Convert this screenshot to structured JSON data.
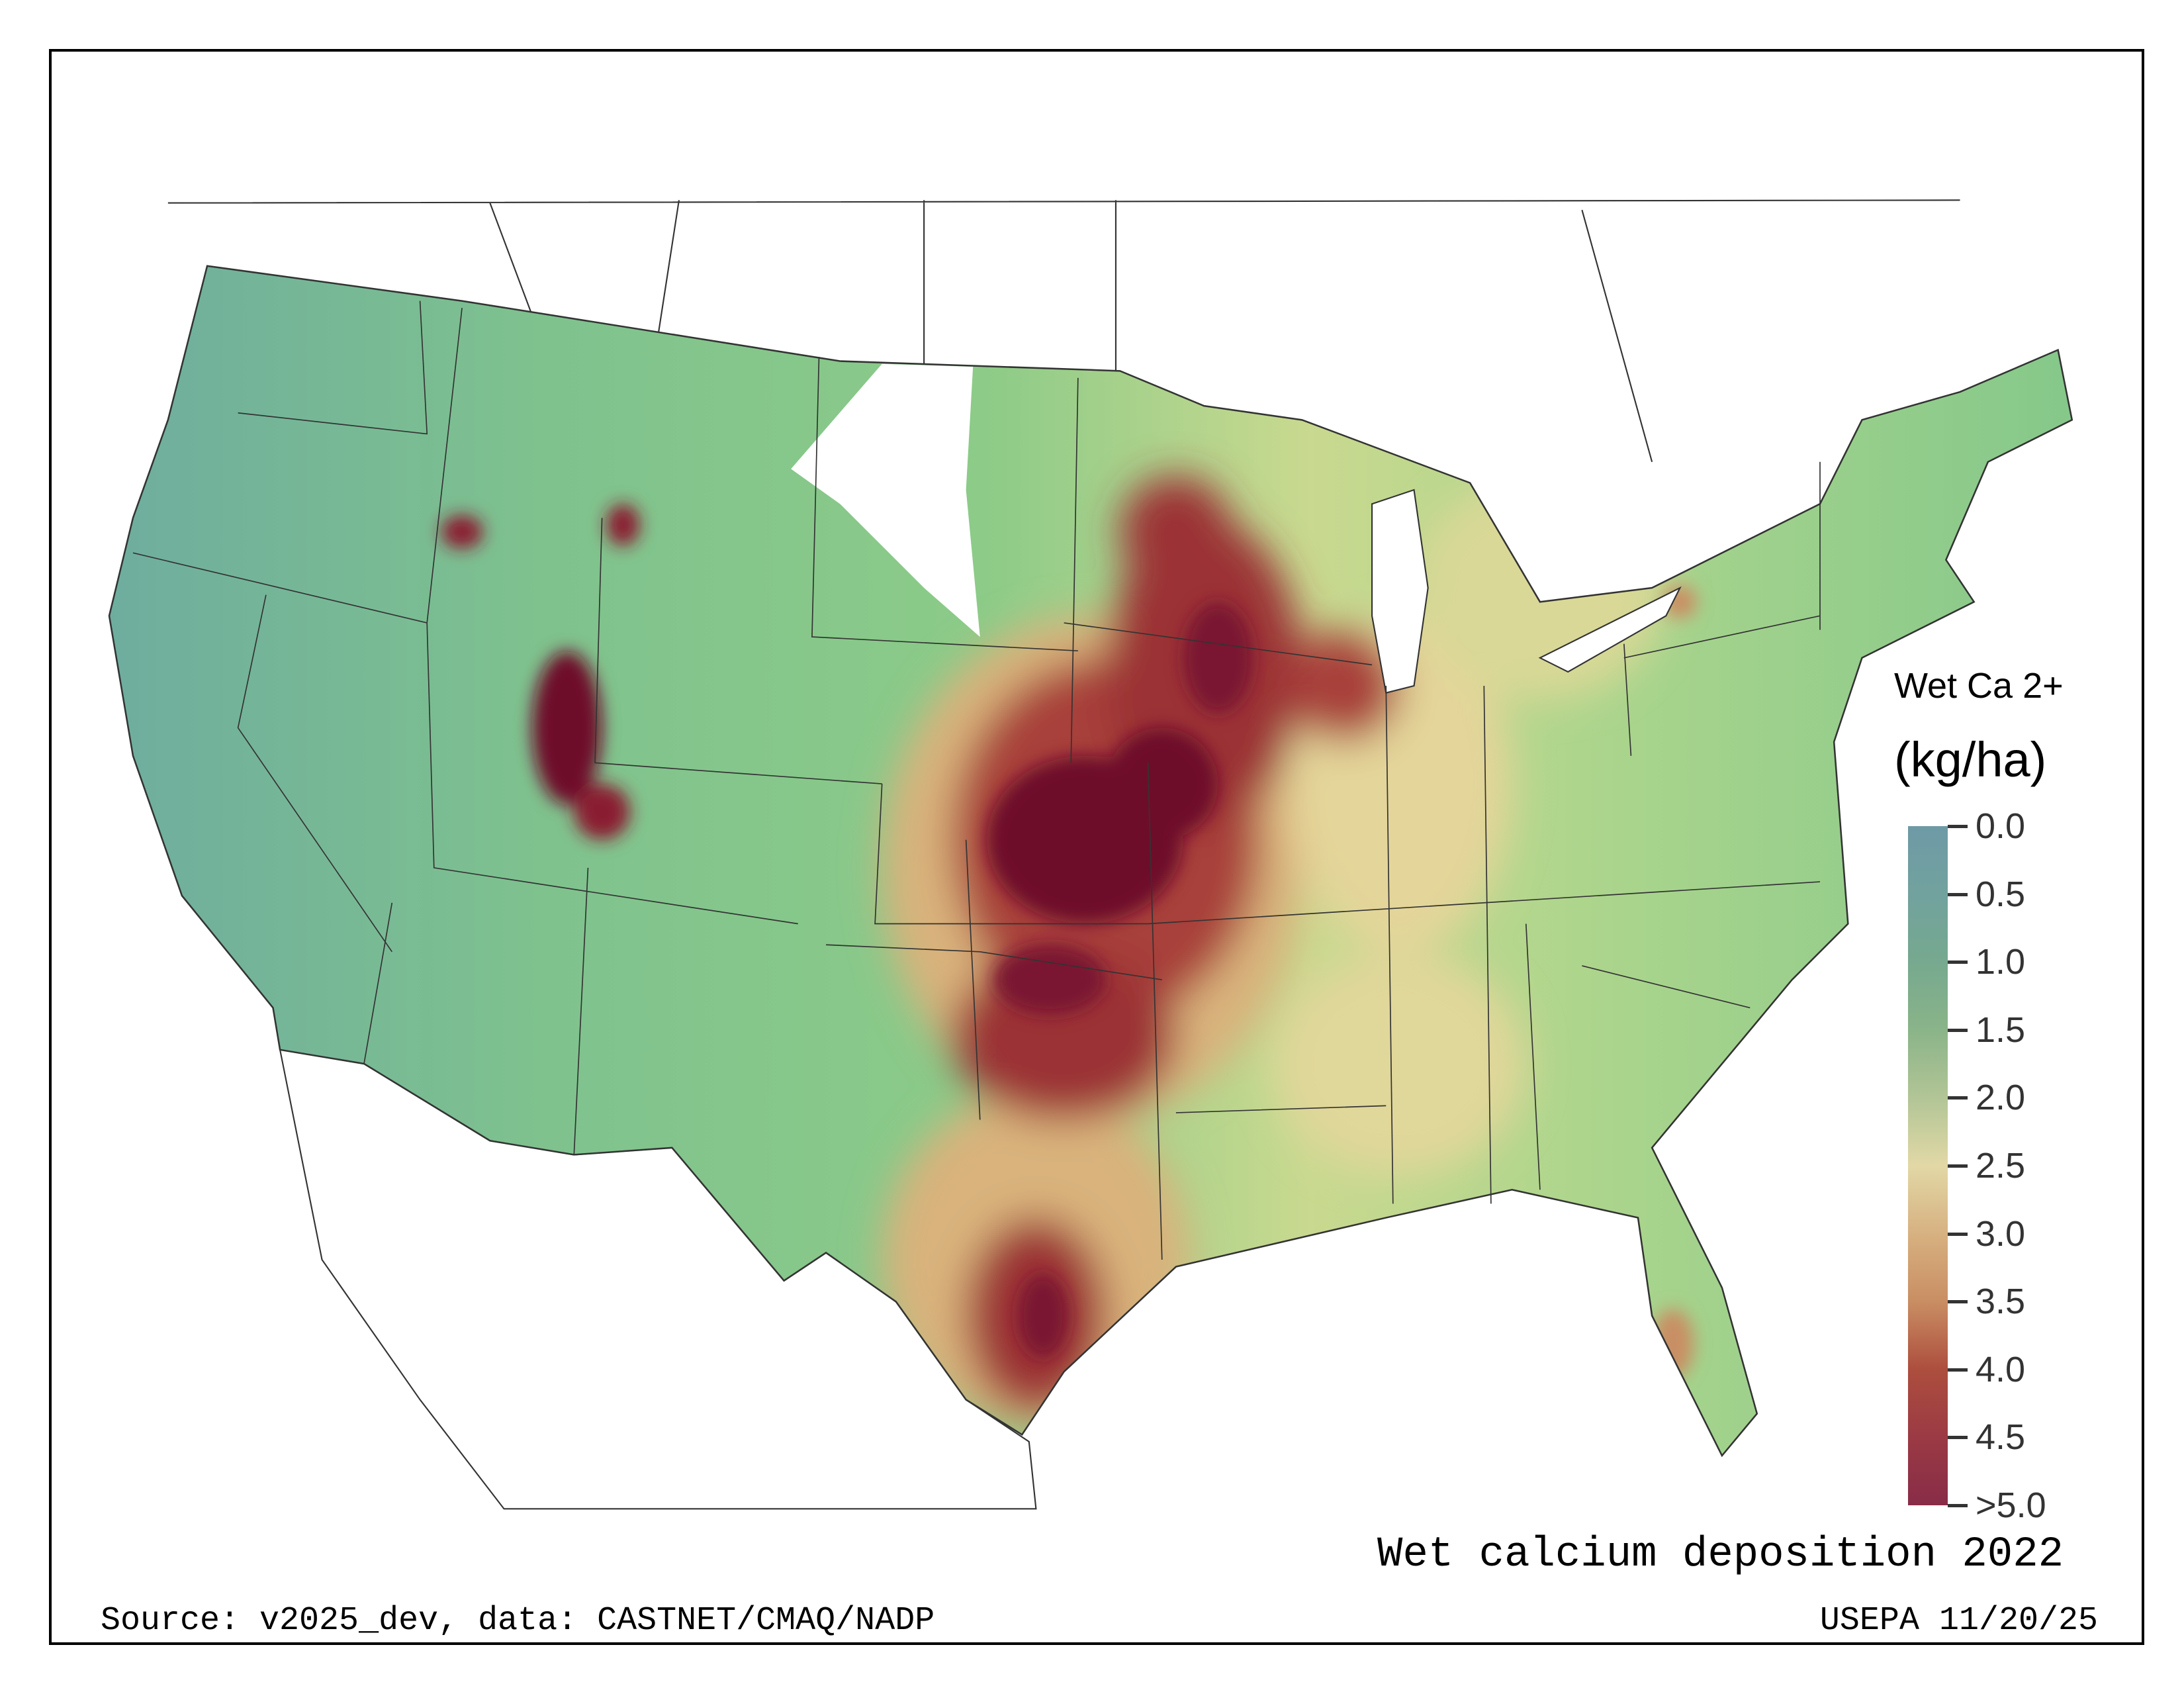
{
  "title": "Wet calcium deposition 2022",
  "source": "Source: v2025_dev, data: CASTNET/CMAQ/NADP",
  "stamp": "USEPA 11/20/25",
  "legend": {
    "title": "Wet Ca 2+",
    "unit": "(kg/ha)",
    "ticks": [
      "0.0",
      "0.5",
      "1.0",
      "1.5",
      "2.0",
      "2.5",
      "3.0",
      "3.5",
      "4.0",
      "4.5",
      ">5.0"
    ],
    "colors": [
      "#6e9aa6",
      "#72a29e",
      "#76a98f",
      "#8ab489",
      "#b2c596",
      "#e2d8a6",
      "#d7b181",
      "#c98e63",
      "#ad4e3e",
      "#9b3a44",
      "#882c48"
    ]
  },
  "map": {
    "colors": {
      "low": "#6ea5a0",
      "mid": "#7cc98a",
      "yellow": "#e8dc9a",
      "high": "#a33a32",
      "max": "#6e0f2a"
    }
  }
}
